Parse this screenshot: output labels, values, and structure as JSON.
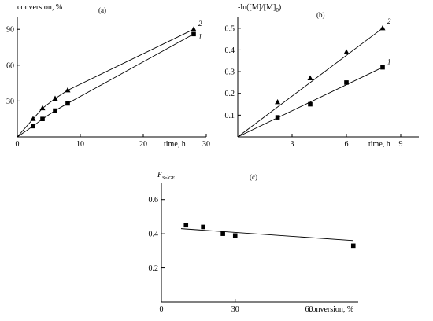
{
  "chart_data": [
    {
      "panel": "(a)",
      "type": "line",
      "xlabel": "time, h",
      "ylabel": "conversion, %",
      "xlim": [
        0,
        30
      ],
      "ylim": [
        0,
        100
      ],
      "xticks": [
        "0",
        "10",
        "20",
        "30"
      ],
      "yticks": [
        "30",
        "60",
        "90"
      ],
      "series": [
        {
          "name": "1",
          "marker": "square",
          "x": [
            2.5,
            4,
            6,
            8,
            28
          ],
          "y": [
            9,
            15,
            22,
            28,
            86
          ],
          "origin": [
            0,
            0
          ]
        },
        {
          "name": "2",
          "marker": "triangle",
          "x": [
            2.5,
            4,
            6,
            8,
            28
          ],
          "y": [
            15,
            24,
            32,
            39,
            90
          ],
          "origin": [
            0,
            0
          ]
        }
      ]
    },
    {
      "panel": "(b)",
      "type": "line",
      "xlabel": "time, h",
      "ylabel": "-ln([M]/[M]",
      "ylabel_sub": "0",
      "ylabel_end": ")",
      "xlim": [
        0,
        10
      ],
      "ylim": [
        0,
        0.55
      ],
      "xticks": [
        "3",
        "6",
        "9"
      ],
      "yticks": [
        "0.1",
        "0.2",
        "0.3",
        "0.4",
        "0.5"
      ],
      "series": [
        {
          "name": "1",
          "marker": "square",
          "x": [
            2.2,
            4,
            6,
            8
          ],
          "y": [
            0.09,
            0.15,
            0.25,
            0.32
          ],
          "fit": {
            "x": [
              0,
              8
            ],
            "y": [
              0,
              0.32
            ]
          }
        },
        {
          "name": "2",
          "marker": "triangle",
          "x": [
            2.2,
            4,
            6,
            8
          ],
          "y": [
            0.16,
            0.27,
            0.39,
            0.5
          ],
          "fit": {
            "x": [
              0,
              8
            ],
            "y": [
              0,
              0.5
            ]
          }
        }
      ]
    },
    {
      "panel": "(c)",
      "type": "scatter",
      "xlabel": "conversion, %",
      "ylabel": "F",
      "ylabel_sub": "SolGE",
      "xlim": [
        0,
        80
      ],
      "ylim": [
        0,
        0.7
      ],
      "xticks": [
        "0",
        "30",
        "60"
      ],
      "yticks": [
        "0.2",
        "0.4",
        "0.6"
      ],
      "series": [
        {
          "name": "",
          "marker": "square",
          "x": [
            10,
            17,
            25,
            30,
            78
          ],
          "y": [
            0.45,
            0.44,
            0.4,
            0.39,
            0.33
          ],
          "fit": {
            "x": [
              8,
              78
            ],
            "y": [
              0.43,
              0.36
            ]
          }
        }
      ]
    }
  ]
}
